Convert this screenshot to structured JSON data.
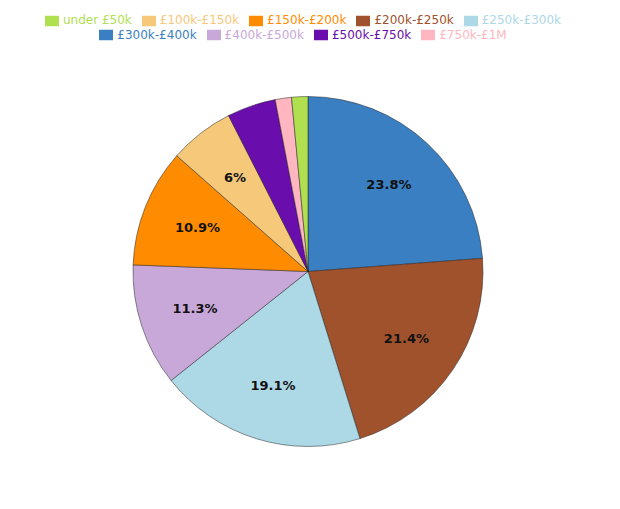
{
  "chart_data": {
    "type": "pie",
    "categories": [
      "£300k-£400k",
      "£200k-£250k",
      "£250k-£300k",
      "£400k-£500k",
      "£150k-£200k",
      "£100k-£150k",
      "£500k-£750k",
      "£750k-£1M",
      "under £50k"
    ],
    "values": [
      23.8,
      21.4,
      19.1,
      11.3,
      10.9,
      6.0,
      4.5,
      1.5,
      1.5
    ],
    "value_labels": [
      "23.8%",
      "21.4%",
      "19.1%",
      "11.3%",
      "10.9%",
      "6%",
      null,
      null,
      null
    ],
    "colors": [
      "#3a7fc1",
      "#a0522d",
      "#add8e6",
      "#c8a8d8",
      "#ff8c00",
      "#f5c87a",
      "#6a0dad",
      "#ffb6c1",
      "#b0e050"
    ],
    "data_labels": true,
    "legend": "top"
  }
}
